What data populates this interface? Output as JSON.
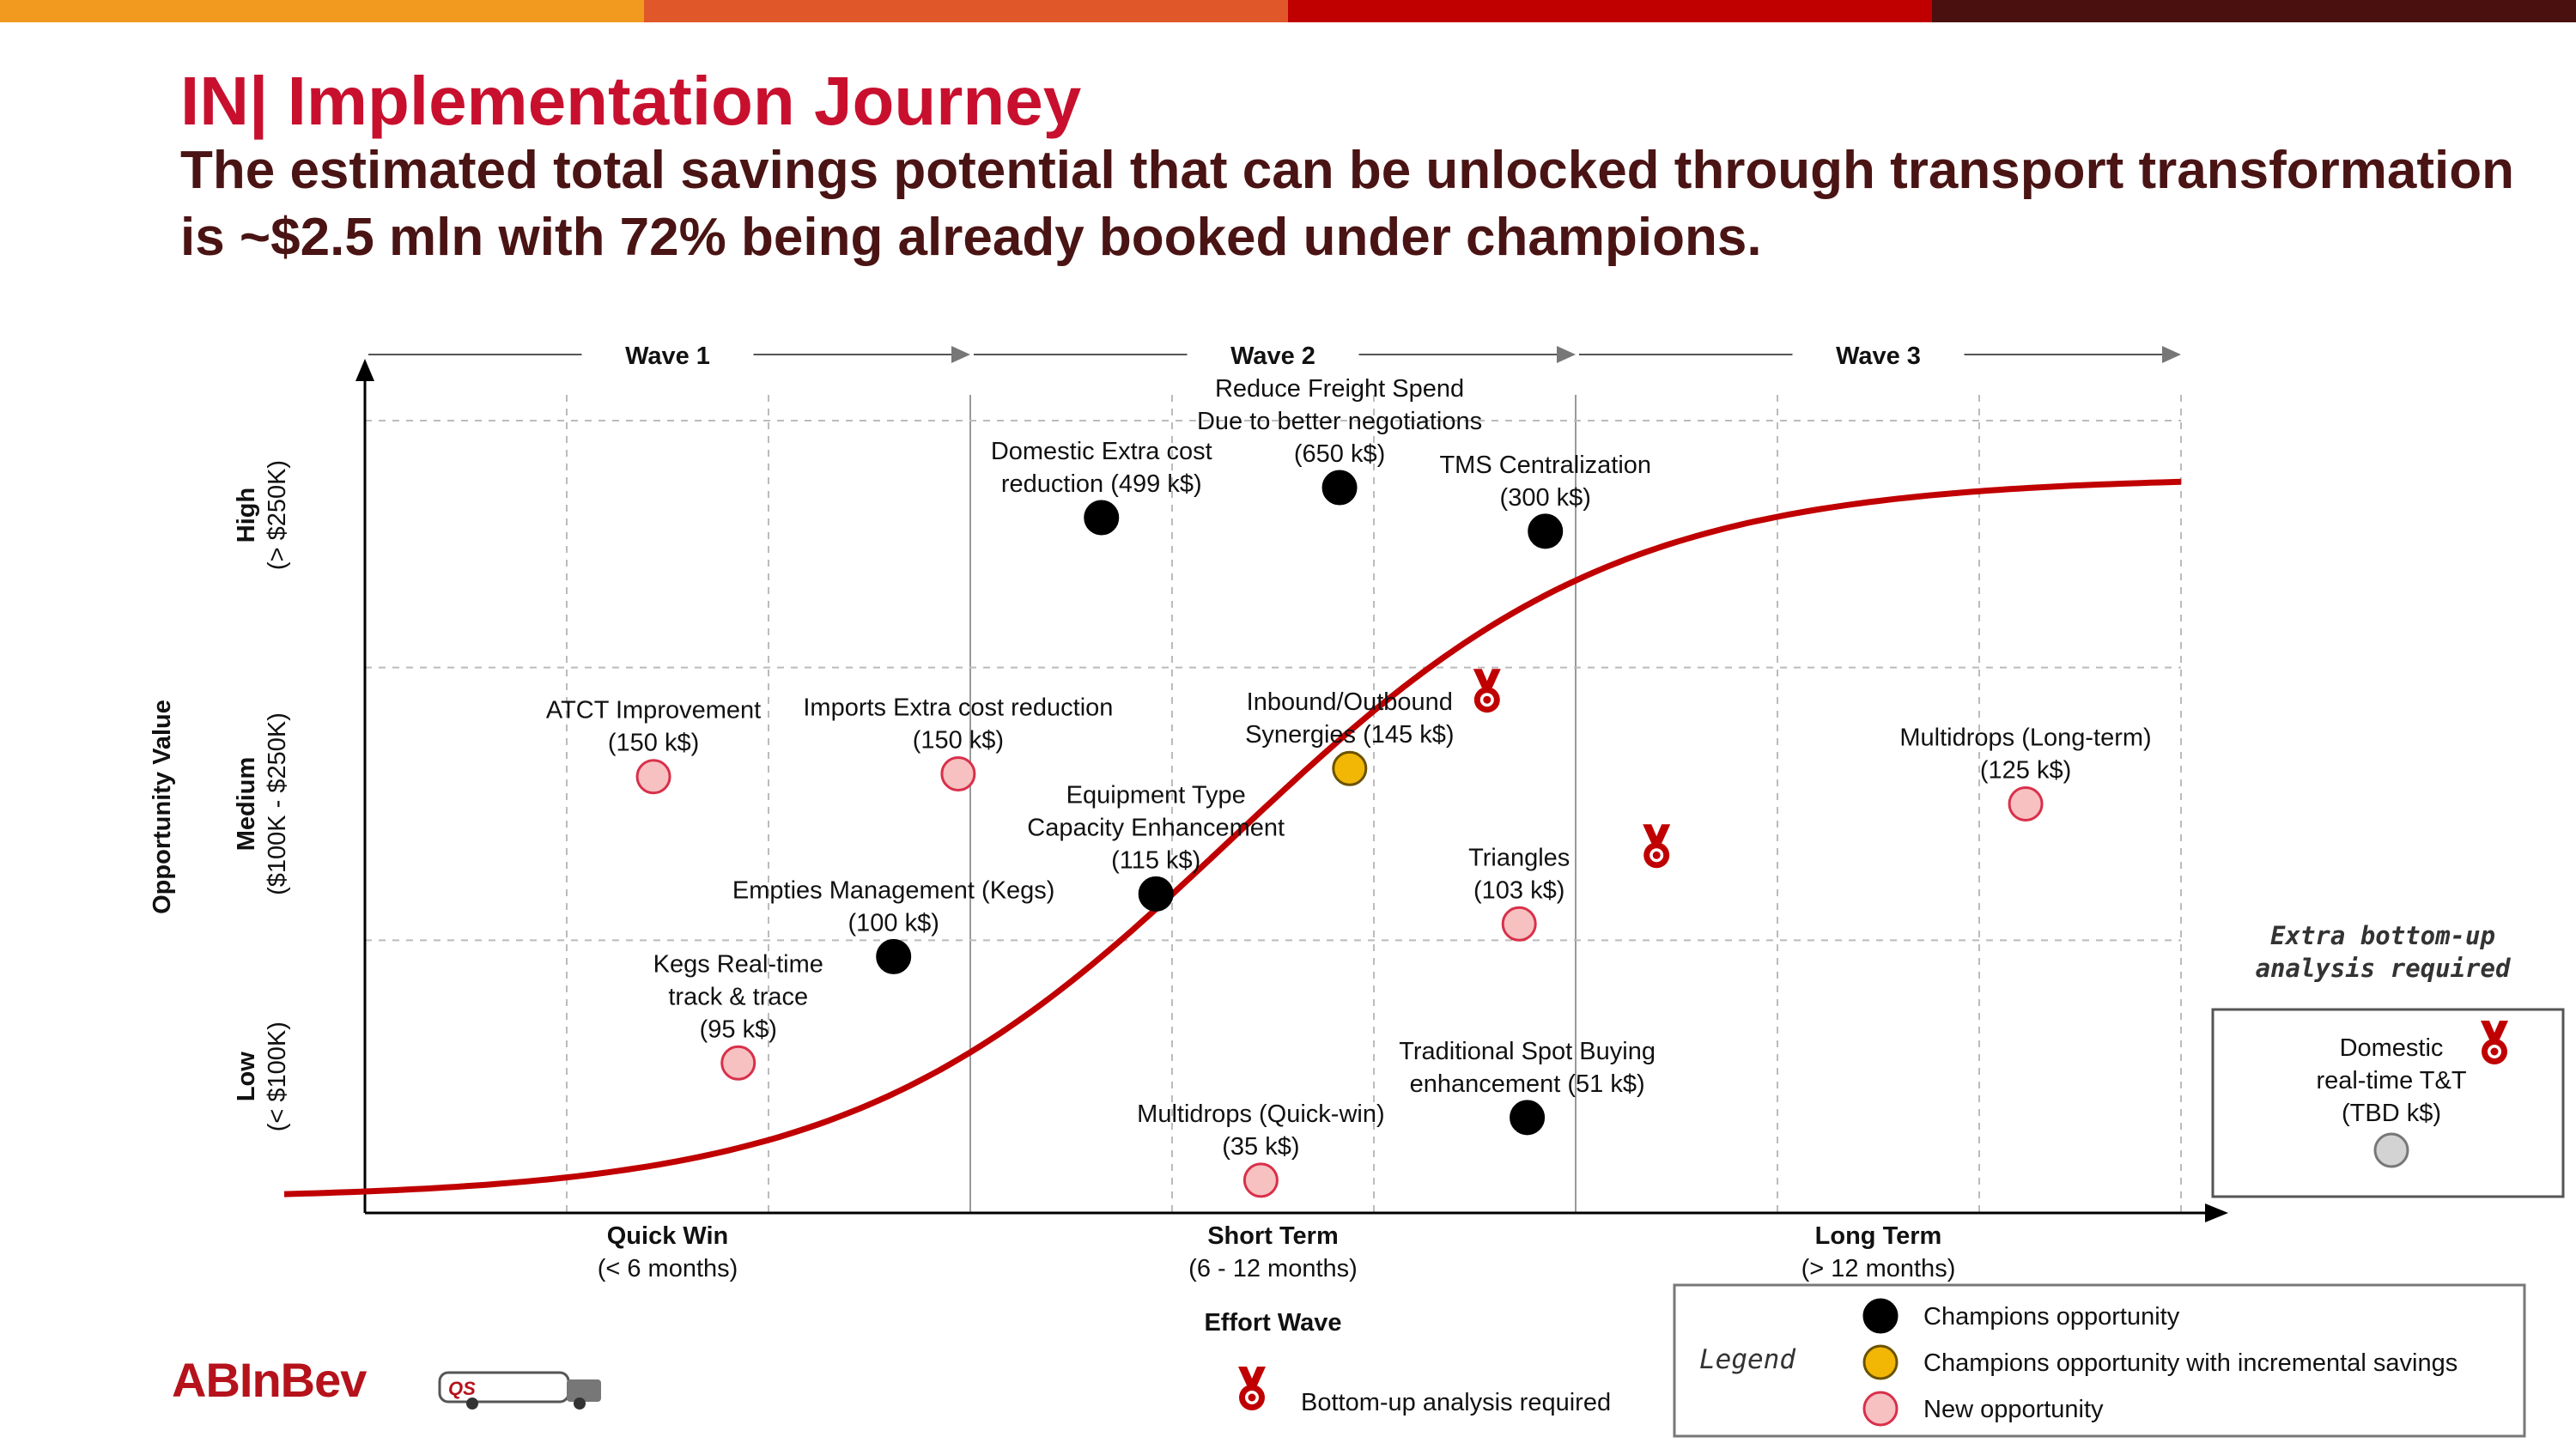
{
  "header": {
    "title": "IN| Implementation Journey",
    "subtitle": "The estimated total savings potential that can be unlocked through transport transformation is ~$2.5 mln with 72% being already booked under champions."
  },
  "top_bar_colors": [
    "#f29a1f",
    "#e0582a",
    "#c00000",
    "#4a1010"
  ],
  "chart_data": {
    "type": "scatter",
    "title": "",
    "xlabel": "Effort Wave",
    "ylabel": "Opportunity Value",
    "x_categories": [
      {
        "label": "Quick Win",
        "sub": "(< 6 months)"
      },
      {
        "label": "Short Term",
        "sub": "(6 - 12 months)"
      },
      {
        "label": "Long Term",
        "sub": "(> 12 months)"
      }
    ],
    "waves": [
      "Wave 1",
      "Wave 2",
      "Wave 3"
    ],
    "y_categories": [
      {
        "label": "Low",
        "sub": "(< $100K)"
      },
      {
        "label": "Medium",
        "sub": "($100K - $250K)"
      },
      {
        "label": "High",
        "sub": "(> $250K)"
      }
    ],
    "xlim": [
      0,
      9
    ],
    "ylim": [
      0,
      3
    ],
    "grid": true,
    "colors": {
      "champion": "#000000",
      "incremental": "#f2b705",
      "new": "#f7c1c1",
      "new_stroke": "#d9304a",
      "tbd": "#d3d3d3",
      "curve": "#c00000"
    },
    "points": [
      {
        "name": "Domestic Extra cost reduction (499 k$)",
        "lines": [
          "Domestic Extra cost",
          "reduction (499 k$)"
        ],
        "x": 3.65,
        "y": 2.55,
        "kind": "champion",
        "anchor": "above"
      },
      {
        "name": "Reduce Freight Spend Due to better negotiations (650 k$)",
        "lines": [
          "Reduce Freight Spend",
          "Due to better negotiations",
          "(650 k$)"
        ],
        "x": 4.83,
        "y": 2.66,
        "kind": "champion",
        "anchor": "above"
      },
      {
        "name": "TMS Centralization (300 k$)",
        "lines": [
          "TMS Centralization",
          "(300 k$)"
        ],
        "x": 5.85,
        "y": 2.5,
        "kind": "champion",
        "anchor": "above"
      },
      {
        "name": "ATCT Improvement (150 k$)",
        "lines": [
          "ATCT Improvement",
          "(150 k$)"
        ],
        "x": 1.43,
        "y": 1.6,
        "kind": "new",
        "anchor": "above"
      },
      {
        "name": "Imports Extra cost reduction (150 k$)",
        "lines": [
          "Imports Extra cost reduction",
          "(150 k$)"
        ],
        "x": 2.94,
        "y": 1.61,
        "kind": "new",
        "anchor": "above"
      },
      {
        "name": "Inbound/Outbound Synergies (145 k$)",
        "lines": [
          "Inbound/Outbound",
          "Synergies (145 k$)"
        ],
        "x": 4.88,
        "y": 1.63,
        "kind": "incremental",
        "anchor": "above",
        "medal": true
      },
      {
        "name": "Multidrops (Long-term) (125 k$)",
        "lines": [
          "Multidrops (Long-term)",
          "(125 k$)"
        ],
        "x": 8.23,
        "y": 1.5,
        "kind": "new",
        "anchor": "above"
      },
      {
        "name": "Equipment Type Capacity Enhancement (115 k$)",
        "lines": [
          "Equipment Type",
          "Capacity Enhancement",
          "(115 k$)"
        ],
        "x": 3.92,
        "y": 1.17,
        "kind": "champion",
        "anchor": "above"
      },
      {
        "name": "Triangles (103 k$)",
        "lines": [
          "Triangles",
          "(103 k$)"
        ],
        "x": 5.72,
        "y": 1.06,
        "kind": "new",
        "anchor": "above",
        "medal": true
      },
      {
        "name": "Empties Management (Kegs) (100 k$)",
        "lines": [
          "Empties Management (Kegs)",
          "(100 k$)"
        ],
        "x": 2.62,
        "y": 0.94,
        "kind": "champion",
        "anchor": "above"
      },
      {
        "name": "Kegs Real-time track & trace (95 k$)",
        "lines": [
          "Kegs Real-time",
          "track & trace",
          "(95 k$)"
        ],
        "x": 1.85,
        "y": 0.55,
        "kind": "new",
        "anchor": "above"
      },
      {
        "name": "Traditional Spot Buying enhancement (51 k$)",
        "lines": [
          "Traditional Spot Buying",
          "enhancement (51 k$)"
        ],
        "x": 5.76,
        "y": 0.35,
        "kind": "champion",
        "anchor": "above"
      },
      {
        "name": "Multidrops (Quick-win) (35 k$)",
        "lines": [
          "Multidrops (Quick-win)",
          "(35 k$)"
        ],
        "x": 4.44,
        "y": 0.12,
        "kind": "new",
        "anchor": "above"
      }
    ],
    "side_box": {
      "note_lines": [
        "Extra bottom-up",
        "analysis required"
      ],
      "item_lines": [
        "Domestic",
        "real-time T&T",
        "(TBD k$)"
      ],
      "kind": "tbd",
      "medal": true
    },
    "legend": {
      "title": "Legend",
      "items": [
        {
          "label": "Champions opportunity",
          "kind": "champion"
        },
        {
          "label": "Champions opportunity with incremental savings",
          "kind": "incremental"
        },
        {
          "label": "New opportunity",
          "kind": "new"
        }
      ],
      "medal_note": "Bottom-up analysis required"
    }
  },
  "footer": {
    "logo_text": "ABInBev",
    "quicksilver_logo": "QUICK SILVER"
  }
}
